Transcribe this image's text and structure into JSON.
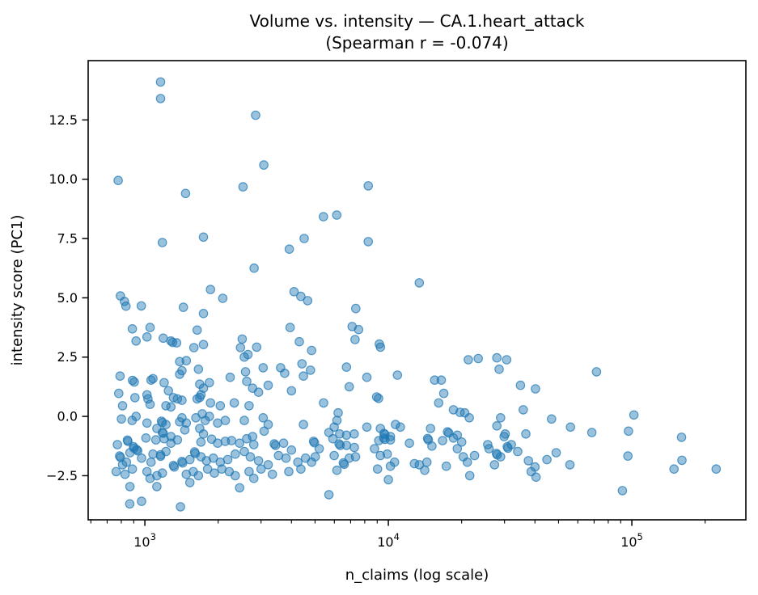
{
  "chart_data": {
    "type": "scatter",
    "title": "Volume vs. intensity — CA.1.heart_attack",
    "subtitle": "(Spearman r = -0.074)",
    "xlabel": "n_claims (log scale)",
    "ylabel": "intensity score (PC1)",
    "x_scale": "log",
    "xlim": [
      585,
      294000
    ],
    "ylim": [
      -4.36,
      15.0
    ],
    "grid": false,
    "legend": "none",
    "spearman_r": -0.074,
    "x_ticks": [
      {
        "value": 1000,
        "base": "10",
        "exp": "3"
      },
      {
        "value": 10000,
        "base": "10",
        "exp": "4"
      },
      {
        "value": 100000,
        "base": "10",
        "exp": "5"
      }
    ],
    "x_minor_ticks": [
      600,
      700,
      800,
      900,
      2000,
      3000,
      4000,
      5000,
      6000,
      7000,
      8000,
      9000,
      20000,
      30000,
      40000,
      50000,
      60000,
      70000,
      80000,
      90000,
      200000
    ],
    "y_ticks": [
      -2.5,
      0.0,
      2.5,
      5.0,
      7.5,
      10.0,
      12.5
    ],
    "y_tick_labels": [
      "−2.5",
      "0.0",
      "2.5",
      "5.0",
      "7.5",
      "10.0",
      "12.5"
    ],
    "marker": {
      "color": "#1f77b4",
      "fill_alpha": 0.45,
      "edge_alpha": 0.72,
      "radius": 5.2
    },
    "points": [
      [
        1160,
        14.1
      ],
      [
        1160,
        13.4
      ],
      [
        2850,
        12.7
      ],
      [
        3080,
        10.6
      ],
      [
        777,
        9.95
      ],
      [
        2530,
        9.68
      ],
      [
        1470,
        9.4
      ],
      [
        8270,
        9.72
      ],
      [
        5410,
        8.42
      ],
      [
        6140,
        8.49
      ],
      [
        1740,
        7.56
      ],
      [
        4510,
        7.5
      ],
      [
        8270,
        7.37
      ],
      [
        1180,
        7.33
      ],
      [
        3920,
        7.05
      ],
      [
        2810,
        6.25
      ],
      [
        13400,
        5.63
      ],
      [
        1860,
        5.35
      ],
      [
        793,
        5.08
      ],
      [
        2090,
        4.98
      ],
      [
        4100,
        5.26
      ],
      [
        824,
        4.85
      ],
      [
        836,
        4.65
      ],
      [
        967,
        4.66
      ],
      [
        1440,
        4.6
      ],
      [
        1740,
        4.34
      ],
      [
        4370,
        5.06
      ],
      [
        4660,
        4.88
      ],
      [
        7350,
        4.55
      ],
      [
        3950,
        3.75
      ],
      [
        7100,
        3.79
      ],
      [
        7550,
        3.66
      ],
      [
        7300,
        3.24
      ],
      [
        9180,
        3.05
      ],
      [
        9280,
        2.92
      ],
      [
        888,
        3.69
      ],
      [
        1050,
        3.75
      ],
      [
        920,
        3.18
      ],
      [
        1020,
        3.35
      ],
      [
        1190,
        3.3
      ],
      [
        1280,
        3.18
      ],
      [
        1300,
        3.12
      ],
      [
        1350,
        3.1
      ],
      [
        1640,
        3.64
      ],
      [
        1590,
        2.9
      ],
      [
        1740,
        3.03
      ],
      [
        2510,
        3.26
      ],
      [
        2470,
        2.9
      ],
      [
        2650,
        2.61
      ],
      [
        2880,
        2.92
      ],
      [
        4310,
        3.15
      ],
      [
        4840,
        2.78
      ],
      [
        1390,
        2.31
      ],
      [
        1480,
        2.35
      ],
      [
        1420,
        1.93
      ],
      [
        1390,
        1.78
      ],
      [
        1660,
        1.99
      ],
      [
        2560,
        2.5
      ],
      [
        3060,
        2.05
      ],
      [
        3610,
        2.05
      ],
      [
        4420,
        2.22
      ],
      [
        21300,
        2.39
      ],
      [
        23400,
        2.44
      ],
      [
        27900,
        2.47
      ],
      [
        30600,
        2.39
      ],
      [
        28500,
        1.99
      ],
      [
        6730,
        2.08
      ],
      [
        791,
        1.7
      ],
      [
        905,
        1.45
      ],
      [
        890,
        1.52
      ],
      [
        1060,
        1.53
      ],
      [
        1080,
        1.59
      ],
      [
        1200,
        1.42
      ],
      [
        1250,
        1.08
      ],
      [
        2240,
        1.65
      ],
      [
        2590,
        1.88
      ],
      [
        2620,
        1.48
      ],
      [
        3750,
        1.82
      ],
      [
        3210,
        1.31
      ],
      [
        2770,
        1.19
      ],
      [
        2930,
        1.02
      ],
      [
        4480,
        1.7
      ],
      [
        4790,
        1.95
      ],
      [
        8160,
        1.65
      ],
      [
        6910,
        1.25
      ],
      [
        10900,
        1.74
      ],
      [
        15500,
        1.53
      ],
      [
        16500,
        1.53
      ],
      [
        4000,
        1.08
      ],
      [
        34900,
        1.31
      ],
      [
        40200,
        1.16
      ],
      [
        71600,
        1.88
      ],
      [
        1740,
        1.19
      ],
      [
        1680,
        1.36
      ],
      [
        1840,
        1.42
      ],
      [
        781,
        0.97
      ],
      [
        810,
        0.45
      ],
      [
        910,
        0.79
      ],
      [
        1030,
        0.74
      ],
      [
        1050,
        0.51
      ],
      [
        1020,
        0.91
      ],
      [
        1310,
        0.79
      ],
      [
        1360,
        0.74
      ],
      [
        1220,
        0.45
      ],
      [
        1280,
        0.4
      ],
      [
        1420,
        0.68
      ],
      [
        1640,
        0.74
      ],
      [
        1680,
        0.8
      ],
      [
        1700,
        0.91
      ],
      [
        1860,
        0.57
      ],
      [
        2040,
        0.45
      ],
      [
        2330,
        0.57
      ],
      [
        2680,
        0.45
      ],
      [
        8950,
        0.82
      ],
      [
        9120,
        0.76
      ],
      [
        5420,
        0.57
      ],
      [
        6220,
        0.15
      ],
      [
        16900,
        0.97
      ],
      [
        16100,
        0.57
      ],
      [
        18500,
        0.28
      ],
      [
        19700,
        0.17
      ],
      [
        20600,
        0.15
      ],
      [
        35800,
        0.28
      ],
      [
        102000,
        0.06
      ],
      [
        920,
        0.0
      ],
      [
        1720,
        0.11
      ],
      [
        1840,
        0.0
      ],
      [
        801,
        -0.11
      ],
      [
        886,
        -0.17
      ],
      [
        1020,
        -0.28
      ],
      [
        1170,
        -0.2
      ],
      [
        1180,
        -0.26
      ],
      [
        1220,
        -0.34
      ],
      [
        1120,
        -0.51
      ],
      [
        1180,
        -0.68
      ],
      [
        1190,
        -0.71
      ],
      [
        1280,
        -0.85
      ],
      [
        1390,
        -0.23
      ],
      [
        1420,
        -0.06
      ],
      [
        1480,
        -0.28
      ],
      [
        1460,
        -0.57
      ],
      [
        1620,
        -0.06
      ],
      [
        1770,
        -0.17
      ],
      [
        1680,
        -0.51
      ],
      [
        1740,
        -0.74
      ],
      [
        1990,
        -0.28
      ],
      [
        2140,
        -0.17
      ],
      [
        2560,
        -0.17
      ],
      [
        2770,
        -0.85
      ],
      [
        3060,
        -0.06
      ],
      [
        3210,
        -0.34
      ],
      [
        3090,
        -0.62
      ],
      [
        4480,
        -0.34
      ],
      [
        6150,
        -0.17
      ],
      [
        5990,
        -0.45
      ],
      [
        6310,
        -0.74
      ],
      [
        5700,
        -0.68
      ],
      [
        6730,
        -0.79
      ],
      [
        7240,
        -0.74
      ],
      [
        8160,
        -0.45
      ],
      [
        9270,
        -0.51
      ],
      [
        9600,
        -0.72
      ],
      [
        9680,
        -0.76
      ],
      [
        10200,
        -0.85
      ],
      [
        10700,
        -0.34
      ],
      [
        11200,
        -0.45
      ],
      [
        21500,
        -0.06
      ],
      [
        14900,
        -0.51
      ],
      [
        17500,
        -0.65
      ],
      [
        17700,
        -0.7
      ],
      [
        19200,
        -0.79
      ],
      [
        27900,
        -0.4
      ],
      [
        28900,
        -0.06
      ],
      [
        30200,
        -0.74
      ],
      [
        36700,
        -0.74
      ],
      [
        46800,
        -0.11
      ],
      [
        56000,
        -0.45
      ],
      [
        68500,
        -0.68
      ],
      [
        96900,
        -0.62
      ],
      [
        160000,
        -0.88
      ],
      [
        29900,
        -0.85
      ],
      [
        771,
        -1.19
      ],
      [
        848,
        -1.0
      ],
      [
        852,
        -1.05
      ],
      [
        898,
        -1.28
      ],
      [
        903,
        -1.34
      ],
      [
        1010,
        -0.91
      ],
      [
        1110,
        -0.99
      ],
      [
        1200,
        -0.94
      ],
      [
        1280,
        -1.13
      ],
      [
        1360,
        -0.99
      ],
      [
        1700,
        -1.08
      ],
      [
        1880,
        -0.96
      ],
      [
        1990,
        -1.13
      ],
      [
        2140,
        -1.05
      ],
      [
        2270,
        -1.02
      ],
      [
        2450,
        -1.13
      ],
      [
        2620,
        -0.94
      ],
      [
        2800,
        -1.19
      ],
      [
        3400,
        -1.16
      ],
      [
        3440,
        -1.22
      ],
      [
        3710,
        -1.13
      ],
      [
        4000,
        -1.42
      ],
      [
        4930,
        -1.05
      ],
      [
        4970,
        -1.11
      ],
      [
        5200,
        -1.36
      ],
      [
        5920,
        -0.94
      ],
      [
        6280,
        -1.16
      ],
      [
        6340,
        -1.22
      ],
      [
        6730,
        -1.22
      ],
      [
        7250,
        -1.31
      ],
      [
        8770,
        -1.36
      ],
      [
        9130,
        -1.02
      ],
      [
        9570,
        -0.91
      ],
      [
        9670,
        -0.97
      ],
      [
        10200,
        -0.99
      ],
      [
        12200,
        -1.13
      ],
      [
        14500,
        -0.93
      ],
      [
        14600,
        -0.99
      ],
      [
        15100,
        -1.25
      ],
      [
        16700,
        -1.02
      ],
      [
        18500,
        -0.91
      ],
      [
        19200,
        -1.36
      ],
      [
        20000,
        -1.08
      ],
      [
        25600,
        -1.19
      ],
      [
        25900,
        -1.36
      ],
      [
        30800,
        -1.28
      ],
      [
        31000,
        -1.34
      ],
      [
        32000,
        -1.19
      ],
      [
        926,
        -1.4
      ],
      [
        934,
        -1.45
      ],
      [
        788,
        -1.67
      ],
      [
        794,
        -1.73
      ],
      [
        840,
        -1.93
      ],
      [
        868,
        -1.53
      ],
      [
        969,
        -1.76
      ],
      [
        1060,
        -1.93
      ],
      [
        1080,
        -1.59
      ],
      [
        1160,
        -1.62
      ],
      [
        1160,
        -1.68
      ],
      [
        1220,
        -1.48
      ],
      [
        1420,
        -1.9
      ],
      [
        1430,
        -1.96
      ],
      [
        1530,
        -1.82
      ],
      [
        1600,
        -1.5
      ],
      [
        1610,
        -1.56
      ],
      [
        1700,
        -1.7
      ],
      [
        1790,
        -1.87
      ],
      [
        1910,
        -1.76
      ],
      [
        2040,
        -1.93
      ],
      [
        2190,
        -1.82
      ],
      [
        2350,
        -1.59
      ],
      [
        2560,
        -1.48
      ],
      [
        2710,
        -1.7
      ],
      [
        2930,
        -1.87
      ],
      [
        3540,
        -1.65
      ],
      [
        3800,
        -1.76
      ],
      [
        4250,
        -1.93
      ],
      [
        4570,
        -1.76
      ],
      [
        5010,
        -1.7
      ],
      [
        4840,
        -1.93
      ],
      [
        5990,
        -1.65
      ],
      [
        6910,
        -1.76
      ],
      [
        7330,
        -1.7
      ],
      [
        9270,
        -1.65
      ],
      [
        9900,
        -1.59
      ],
      [
        10600,
        -1.93
      ],
      [
        12800,
        -1.99
      ],
      [
        14400,
        -1.93
      ],
      [
        20300,
        -1.7
      ],
      [
        21100,
        -1.93
      ],
      [
        22600,
        -1.65
      ],
      [
        27800,
        -1.56
      ],
      [
        28000,
        -1.62
      ],
      [
        28900,
        -1.7
      ],
      [
        34000,
        -1.48
      ],
      [
        37600,
        -1.87
      ],
      [
        44800,
        -1.82
      ],
      [
        48900,
        -1.53
      ],
      [
        96400,
        -1.67
      ],
      [
        160700,
        -1.85
      ],
      [
        6530,
        -1.96
      ],
      [
        762,
        -2.33
      ],
      [
        810,
        -2.04
      ],
      [
        829,
        -2.44
      ],
      [
        888,
        -2.22
      ],
      [
        1020,
        -2.33
      ],
      [
        1120,
        -2.5
      ],
      [
        1180,
        -2.39
      ],
      [
        1310,
        -2.07
      ],
      [
        1320,
        -2.13
      ],
      [
        1480,
        -2.44
      ],
      [
        1580,
        -2.33
      ],
      [
        1660,
        -2.5
      ],
      [
        1810,
        -2.22
      ],
      [
        1930,
        -2.39
      ],
      [
        2070,
        -2.22
      ],
      [
        2220,
        -2.33
      ],
      [
        2350,
        -2.5
      ],
      [
        2680,
        -2.33
      ],
      [
        3000,
        -2.22
      ],
      [
        3210,
        -2.04
      ],
      [
        3340,
        -2.44
      ],
      [
        3900,
        -2.33
      ],
      [
        4370,
        -2.22
      ],
      [
        6590,
        -2.02
      ],
      [
        6150,
        -2.27
      ],
      [
        9030,
        -2.22
      ],
      [
        10200,
        -2.1
      ],
      [
        13400,
        -2.04
      ],
      [
        14100,
        -2.27
      ],
      [
        17300,
        -2.1
      ],
      [
        27300,
        -2.04
      ],
      [
        55700,
        -2.04
      ],
      [
        149000,
        -2.22
      ],
      [
        222000,
        -2.22
      ],
      [
        40000,
        -2.13
      ],
      [
        21600,
        -2.5
      ],
      [
        1050,
        -2.61
      ],
      [
        2800,
        -2.61
      ],
      [
        868,
        -2.96
      ],
      [
        1120,
        -2.96
      ],
      [
        1530,
        -2.79
      ],
      [
        2450,
        -3.01
      ],
      [
        10000,
        -2.67
      ],
      [
        38600,
        -2.33
      ],
      [
        40400,
        -2.56
      ],
      [
        91500,
        -3.13
      ],
      [
        5700,
        -3.3
      ],
      [
        867,
        -3.69
      ],
      [
        969,
        -3.58
      ],
      [
        1400,
        -3.81
      ]
    ]
  }
}
